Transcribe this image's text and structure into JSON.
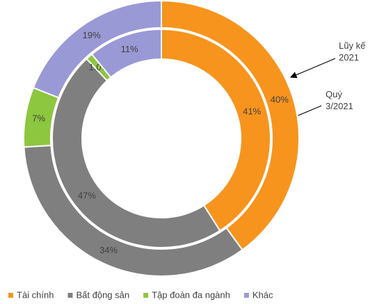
{
  "chart_data": {
    "type": "donut",
    "categories": [
      "Tài chính",
      "Bất động sản",
      "Tập đoàn đa ngành",
      "Khác"
    ],
    "colors": [
      "#f7941d",
      "#7f7f7f",
      "#8dc63f",
      "#9999d6"
    ],
    "series": [
      {
        "name": "Lũy kế 2021",
        "values": [
          40,
          34,
          7,
          19
        ],
        "value_labels": [
          "40%",
          "34%",
          "7%",
          "19%"
        ]
      },
      {
        "name": "Quý 3/2021",
        "values": [
          41,
          47,
          1.0,
          11
        ],
        "value_labels": [
          "41%",
          "47%",
          "1.0%",
          "11%"
        ]
      }
    ]
  }
}
